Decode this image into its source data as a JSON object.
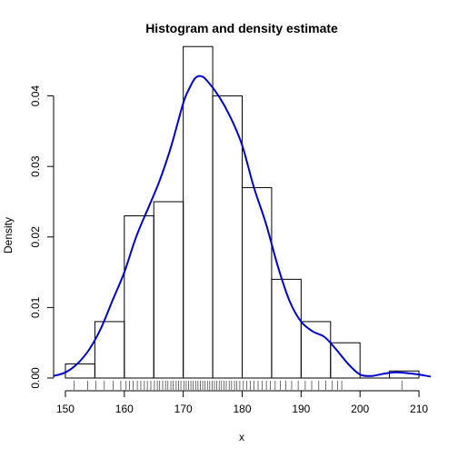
{
  "chart_data": {
    "type": "bar",
    "title": "Histogram and density estimate",
    "xlabel": "x",
    "ylabel": "Density",
    "xlim": [
      148,
      212
    ],
    "ylim": [
      0,
      0.046
    ],
    "bins": [
      {
        "x0": 150,
        "x1": 155,
        "density": 0.002
      },
      {
        "x0": 155,
        "x1": 160,
        "density": 0.008
      },
      {
        "x0": 160,
        "x1": 165,
        "density": 0.023
      },
      {
        "x0": 165,
        "x1": 170,
        "density": 0.025
      },
      {
        "x0": 170,
        "x1": 175,
        "density": 0.047
      },
      {
        "x0": 175,
        "x1": 180,
        "density": 0.04
      },
      {
        "x0": 180,
        "x1": 185,
        "density": 0.027
      },
      {
        "x0": 185,
        "x1": 190,
        "density": 0.014
      },
      {
        "x0": 190,
        "x1": 195,
        "density": 0.008
      },
      {
        "x0": 195,
        "x1": 200,
        "density": 0.005
      },
      {
        "x0": 200,
        "x1": 205,
        "density": 0.0
      },
      {
        "x0": 205,
        "x1": 210,
        "density": 0.001
      }
    ],
    "density_curve": {
      "color": "#0000cc",
      "x": [
        148,
        150,
        152,
        154,
        156,
        158,
        160,
        162,
        164,
        166,
        168,
        170,
        171,
        172,
        173,
        174,
        176,
        178,
        180,
        182,
        184,
        186,
        188,
        190,
        192,
        194,
        196,
        198,
        200,
        202,
        204,
        206,
        208,
        210,
        212
      ],
      "y": [
        0.0003,
        0.0008,
        0.002,
        0.004,
        0.007,
        0.011,
        0.015,
        0.02,
        0.024,
        0.028,
        0.033,
        0.039,
        0.041,
        0.0425,
        0.0428,
        0.0422,
        0.04,
        0.037,
        0.033,
        0.027,
        0.022,
        0.016,
        0.011,
        0.008,
        0.0066,
        0.0058,
        0.004,
        0.002,
        0.0005,
        0.0003,
        0.0006,
        0.0008,
        0.0007,
        0.0005,
        0.0002
      ]
    },
    "rug": [
      151.5,
      153.8,
      155.2,
      156.6,
      158.1,
      159.4,
      160.3,
      160.9,
      161.5,
      162.2,
      162.8,
      163.4,
      163.9,
      164.5,
      165.1,
      165.6,
      166.0,
      166.5,
      167.0,
      167.4,
      167.9,
      168.3,
      168.8,
      169.2,
      169.6,
      170.1,
      170.5,
      170.9,
      171.3,
      171.7,
      172.1,
      172.5,
      172.9,
      173.3,
      173.7,
      174.1,
      174.5,
      174.9,
      175.3,
      175.7,
      176.1,
      176.5,
      176.9,
      177.3,
      177.8,
      178.2,
      178.7,
      179.1,
      179.6,
      180.2,
      180.8,
      181.4,
      182.0,
      182.7,
      183.4,
      184.1,
      184.8,
      185.6,
      186.5,
      187.4,
      188.4,
      189.5,
      190.7,
      191.8,
      193.0,
      194.2,
      195.3,
      196.2,
      196.9,
      207.1
    ],
    "x_ticks": [
      "150",
      "160",
      "170",
      "180",
      "190",
      "200",
      "210"
    ],
    "x_tick_values": [
      150,
      160,
      170,
      180,
      190,
      200,
      210
    ],
    "y_ticks": [
      "0.00",
      "0.01",
      "0.02",
      "0.03",
      "0.04"
    ],
    "y_tick_values": [
      0.0,
      0.01,
      0.02,
      0.03,
      0.04
    ],
    "grid": false,
    "legend": "none"
  }
}
